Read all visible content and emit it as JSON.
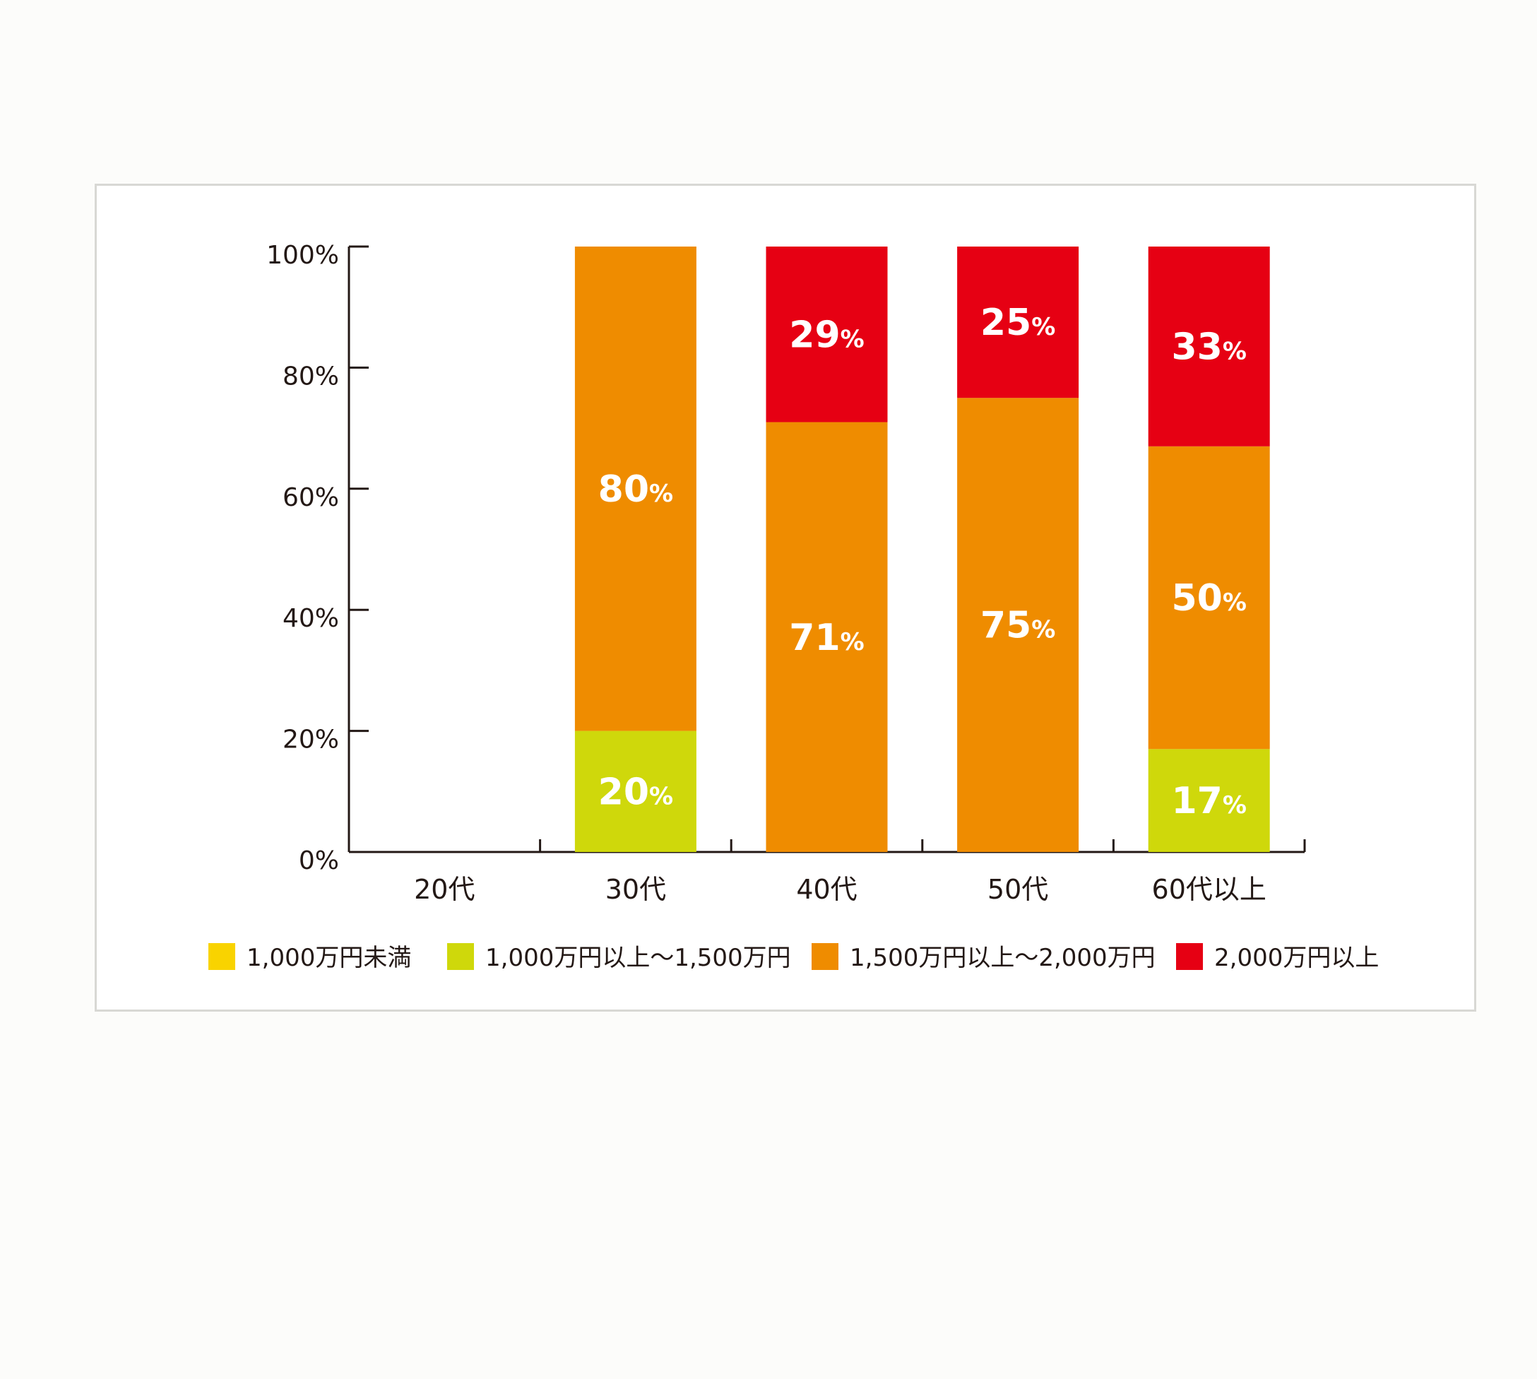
{
  "chart_data": {
    "type": "bar",
    "stacked": true,
    "categories": [
      "20代",
      "30代",
      "40代",
      "50代",
      "60代以上"
    ],
    "series": [
      {
        "name": "1,000万円未満",
        "color": "#f9d300",
        "values": [
          0,
          0,
          0,
          0,
          0
        ]
      },
      {
        "name": "1,000万円以上〜1,500万円",
        "color": "#cfd80b",
        "values": [
          0,
          20,
          0,
          0,
          17
        ]
      },
      {
        "name": "1,500万円以上〜2,000万円",
        "color": "#ef8c00",
        "values": [
          0,
          80,
          71,
          75,
          50
        ]
      },
      {
        "name": "2,000万円以上",
        "color": "#e60013",
        "values": [
          0,
          0,
          29,
          25,
          33
        ]
      }
    ],
    "yticks": [
      "0%",
      "20%",
      "40%",
      "60%",
      "80%",
      "100%"
    ],
    "ylim": [
      0,
      100
    ],
    "data_label_suffix": "%",
    "legend": "bottom",
    "grid": false
  }
}
